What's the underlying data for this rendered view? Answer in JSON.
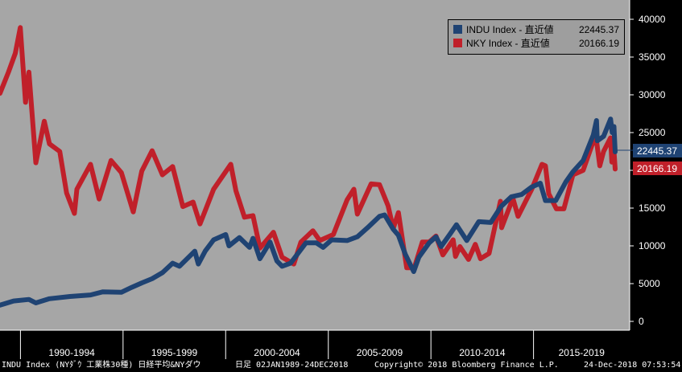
{
  "chart_data": {
    "type": "line",
    "x_range": [
      "1989-01-02",
      "2018-12-24"
    ],
    "ylim": [
      0,
      42000
    ],
    "y_axis_side": "right",
    "y_ticks": [
      0,
      5000,
      10000,
      15000,
      20000,
      25000,
      30000,
      35000,
      40000
    ],
    "y_tick_labels": [
      "0",
      "5000",
      "10000",
      "15000",
      "20000",
      "25000",
      "30000",
      "35000",
      "40000"
    ],
    "x_tick_labels": [
      "1990-1994",
      "1995-1999",
      "2000-2004",
      "2005-2009",
      "2010-2014",
      "2015-2019"
    ],
    "grid": false,
    "legend_position": "top-right",
    "background": "#a6a6a6",
    "series": [
      {
        "name": "INDU Index",
        "legend_label": "INDU Index - 直近値",
        "last_value": "22445.37",
        "color": "#1f4373",
        "points": [
          [
            "1989-01-02",
            2150
          ],
          [
            "1989-09-01",
            2700
          ],
          [
            "1990-06-01",
            2900
          ],
          [
            "1990-10-01",
            2450
          ],
          [
            "1991-06-01",
            3000
          ],
          [
            "1992-06-01",
            3300
          ],
          [
            "1993-06-01",
            3500
          ],
          [
            "1994-01-01",
            3900
          ],
          [
            "1994-12-01",
            3850
          ],
          [
            "1995-06-01",
            4500
          ],
          [
            "1995-12-01",
            5100
          ],
          [
            "1996-06-01",
            5650
          ],
          [
            "1996-12-01",
            6450
          ],
          [
            "1997-06-01",
            7700
          ],
          [
            "1997-10-01",
            7300
          ],
          [
            "1998-07-01",
            9300
          ],
          [
            "1998-09-01",
            7600
          ],
          [
            "1999-01-01",
            9300
          ],
          [
            "1999-06-01",
            10800
          ],
          [
            "2000-01-01",
            11500
          ],
          [
            "2000-03-01",
            10000
          ],
          [
            "2000-09-01",
            11100
          ],
          [
            "2001-03-01",
            9800
          ],
          [
            "2001-05-01",
            11000
          ],
          [
            "2001-09-01",
            8300
          ],
          [
            "2002-03-01",
            10500
          ],
          [
            "2002-07-01",
            8000
          ],
          [
            "2002-10-01",
            7300
          ],
          [
            "2003-03-01",
            7700
          ],
          [
            "2003-12-01",
            10400
          ],
          [
            "2004-06-01",
            10400
          ],
          [
            "2004-10-01",
            9800
          ],
          [
            "2005-03-01",
            10800
          ],
          [
            "2005-12-01",
            10700
          ],
          [
            "2006-06-01",
            11200
          ],
          [
            "2006-12-01",
            12400
          ],
          [
            "2007-07-01",
            13900
          ],
          [
            "2007-10-01",
            14100
          ],
          [
            "2008-03-01",
            12200
          ],
          [
            "2008-06-01",
            11400
          ],
          [
            "2008-10-01",
            8900
          ],
          [
            "2009-03-01",
            6600
          ],
          [
            "2009-06-01",
            8500
          ],
          [
            "2009-12-01",
            10400
          ],
          [
            "2010-04-01",
            11200
          ],
          [
            "2010-07-01",
            9900
          ],
          [
            "2010-12-01",
            11500
          ],
          [
            "2011-04-01",
            12800
          ],
          [
            "2011-10-01",
            10700
          ],
          [
            "2012-05-01",
            13200
          ],
          [
            "2012-12-01",
            13100
          ],
          [
            "2013-06-01",
            15200
          ],
          [
            "2013-12-01",
            16500
          ],
          [
            "2014-06-01",
            16800
          ],
          [
            "2014-12-01",
            17800
          ],
          [
            "2015-05-01",
            18300
          ],
          [
            "2015-08-01",
            16000
          ],
          [
            "2016-02-01",
            16000
          ],
          [
            "2016-08-01",
            18500
          ],
          [
            "2016-12-01",
            19800
          ],
          [
            "2017-06-01",
            21300
          ],
          [
            "2017-12-01",
            24700
          ],
          [
            "2018-01-26",
            26600
          ],
          [
            "2018-02-09",
            23900
          ],
          [
            "2018-06-01",
            24500
          ],
          [
            "2018-10-03",
            26800
          ],
          [
            "2018-11-01",
            25000
          ],
          [
            "2018-12-03",
            25800
          ],
          [
            "2018-12-24",
            22445.37
          ]
        ]
      },
      {
        "name": "NKY Index",
        "legend_label": "NKY Index - 直近値",
        "last_value": "20166.19",
        "color": "#c0202a",
        "points": [
          [
            "1989-01-02",
            30200
          ],
          [
            "1989-06-01",
            33000
          ],
          [
            "1989-10-01",
            35500
          ],
          [
            "1989-12-29",
            38900
          ],
          [
            "1990-04-01",
            29000
          ],
          [
            "1990-06-01",
            33000
          ],
          [
            "1990-10-01",
            21000
          ],
          [
            "1991-03-01",
            26500
          ],
          [
            "1991-06-01",
            23500
          ],
          [
            "1991-12-01",
            22500
          ],
          [
            "1992-04-01",
            17000
          ],
          [
            "1992-08-18",
            14300
          ],
          [
            "1992-10-01",
            17500
          ],
          [
            "1993-06-01",
            20800
          ],
          [
            "1993-11-01",
            16200
          ],
          [
            "1994-06-01",
            21300
          ],
          [
            "1994-12-01",
            19700
          ],
          [
            "1995-07-01",
            14500
          ],
          [
            "1995-12-01",
            19900
          ],
          [
            "1996-06-01",
            22600
          ],
          [
            "1996-12-01",
            19400
          ],
          [
            "1997-06-01",
            20500
          ],
          [
            "1997-12-01",
            15200
          ],
          [
            "1998-06-01",
            15800
          ],
          [
            "1998-10-01",
            12900
          ],
          [
            "1999-06-01",
            17500
          ],
          [
            "2000-04-01",
            20800
          ],
          [
            "2000-07-01",
            17300
          ],
          [
            "2000-12-01",
            13800
          ],
          [
            "2001-05-01",
            14000
          ],
          [
            "2001-09-01",
            9700
          ],
          [
            "2002-05-01",
            11800
          ],
          [
            "2002-10-01",
            8500
          ],
          [
            "2003-04-28",
            7600
          ],
          [
            "2003-09-01",
            10500
          ],
          [
            "2004-04-01",
            12000
          ],
          [
            "2004-08-01",
            10700
          ],
          [
            "2005-04-01",
            11500
          ],
          [
            "2005-12-01",
            16100
          ],
          [
            "2006-04-01",
            17500
          ],
          [
            "2006-06-01",
            14200
          ],
          [
            "2007-02-01",
            18200
          ],
          [
            "2007-07-01",
            18100
          ],
          [
            "2007-12-01",
            15300
          ],
          [
            "2008-03-01",
            12300
          ],
          [
            "2008-06-01",
            14400
          ],
          [
            "2008-10-27",
            7100
          ],
          [
            "2009-03-10",
            7100
          ],
          [
            "2009-08-01",
            10500
          ],
          [
            "2009-12-01",
            10500
          ],
          [
            "2010-04-01",
            11300
          ],
          [
            "2010-08-01",
            8800
          ],
          [
            "2011-02-01",
            10800
          ],
          [
            "2011-03-15",
            8600
          ],
          [
            "2011-06-01",
            9900
          ],
          [
            "2011-11-01",
            8200
          ],
          [
            "2012-03-01",
            10200
          ],
          [
            "2012-06-01",
            8300
          ],
          [
            "2012-11-01",
            9000
          ],
          [
            "2013-05-22",
            15900
          ],
          [
            "2013-06-13",
            12400
          ],
          [
            "2013-12-30",
            16300
          ],
          [
            "2014-04-01",
            13900
          ],
          [
            "2014-12-01",
            17500
          ],
          [
            "2015-06-01",
            20800
          ],
          [
            "2015-08-01",
            20600
          ],
          [
            "2015-09-29",
            16900
          ],
          [
            "2016-02-12",
            14900
          ],
          [
            "2016-06-24",
            14900
          ],
          [
            "2016-12-01",
            19400
          ],
          [
            "2017-06-01",
            20000
          ],
          [
            "2017-11-09",
            23400
          ],
          [
            "2018-01-23",
            24100
          ],
          [
            "2018-03-26",
            20600
          ],
          [
            "2018-06-01",
            22500
          ],
          [
            "2018-10-02",
            24300
          ],
          [
            "2018-10-26",
            21100
          ],
          [
            "2018-12-03",
            22600
          ],
          [
            "2018-12-24",
            20166.19
          ]
        ]
      }
    ]
  },
  "legend": {
    "items": [
      {
        "name": "INDU Index - 直近値",
        "value": "22445.37",
        "color": "#1f4373"
      },
      {
        "name": "NKY Index - 直近値",
        "value": "20166.19",
        "color": "#c0202a"
      }
    ]
  },
  "last_value_tags": {
    "indu": "22445.37",
    "nky": "20166.19"
  },
  "footer": {
    "description": "INDU Index (NYﾀﾞｳ 工業株30種) 日経平均&NYダウ",
    "period": "日足 02JAN1989-24DEC2018",
    "copyright": "Copyright© 2018 Bloomberg Finance L.P.",
    "timestamp": "24-Dec-2018 07:53:54"
  }
}
